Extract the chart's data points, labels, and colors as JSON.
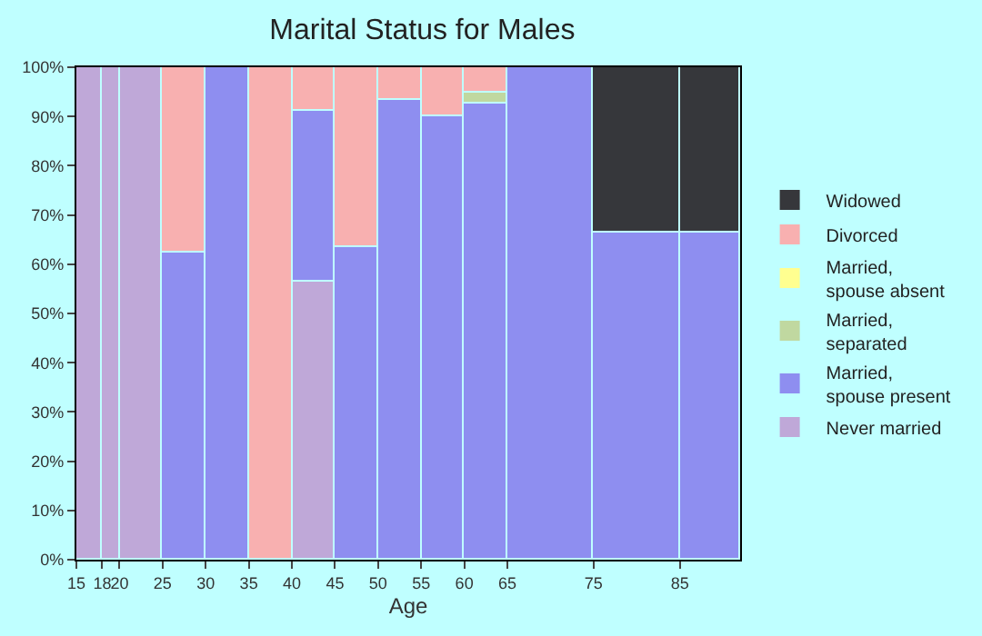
{
  "chart_data": {
    "type": "bar",
    "stacked": true,
    "title": "Marital Status for Males",
    "xlabel": "Age",
    "x": [
      16.5,
      19,
      22.5,
      27.5,
      32.5,
      37.5,
      42.5,
      47.5,
      52.5,
      57.5,
      62.5,
      70,
      80,
      88.5
    ],
    "xlim": [
      15,
      92
    ],
    "xticks": [
      15,
      18,
      20,
      25,
      30,
      35,
      40,
      45,
      50,
      55,
      60,
      65,
      75,
      85
    ],
    "ylim": [
      0,
      100
    ],
    "yticks": [
      {
        "value": 0,
        "label": "0%"
      },
      {
        "value": 10,
        "label": "10%"
      },
      {
        "value": 20,
        "label": "20%"
      },
      {
        "value": 30,
        "label": "30%"
      },
      {
        "value": 40,
        "label": "40%"
      },
      {
        "value": 50,
        "label": "50%"
      },
      {
        "value": 60,
        "label": "60%"
      },
      {
        "value": 70,
        "label": "70%"
      },
      {
        "value": 80,
        "label": "80%"
      },
      {
        "value": 90,
        "label": "90%"
      },
      {
        "value": 100,
        "label": "100%"
      }
    ],
    "legend": "right",
    "series": [
      {
        "name": "Never married",
        "color": "#bfa8d8",
        "values": [
          100,
          100,
          100,
          null,
          null,
          null,
          56.5,
          null,
          null,
          null,
          null,
          null,
          null,
          null
        ]
      },
      {
        "name": "Married,\nspouse present",
        "color": "#8e8ef0",
        "values": [
          null,
          null,
          null,
          62.5,
          100,
          null,
          34.5,
          63.5,
          93.5,
          90,
          92.5,
          100,
          66.5,
          66.5
        ]
      },
      {
        "name": "Married,\nseparated",
        "color": "#c0d8a0",
        "values": [
          null,
          null,
          null,
          null,
          null,
          null,
          null,
          null,
          null,
          null,
          2.5,
          null,
          null,
          null
        ]
      },
      {
        "name": "Married,\nspouse absent",
        "color": "#ffff90",
        "values": [
          null,
          null,
          null,
          null,
          null,
          null,
          null,
          null,
          null,
          null,
          null,
          null,
          null,
          null
        ]
      },
      {
        "name": "Divorced",
        "color": "#f8b0b0",
        "values": [
          null,
          null,
          null,
          37.5,
          null,
          100,
          9,
          36.5,
          6.5,
          10,
          5,
          null,
          null,
          null
        ]
      },
      {
        "name": "Widowed",
        "color": "#36373b",
        "values": [
          null,
          null,
          null,
          null,
          null,
          null,
          null,
          null,
          null,
          null,
          null,
          null,
          33.5,
          33.5
        ]
      }
    ]
  }
}
